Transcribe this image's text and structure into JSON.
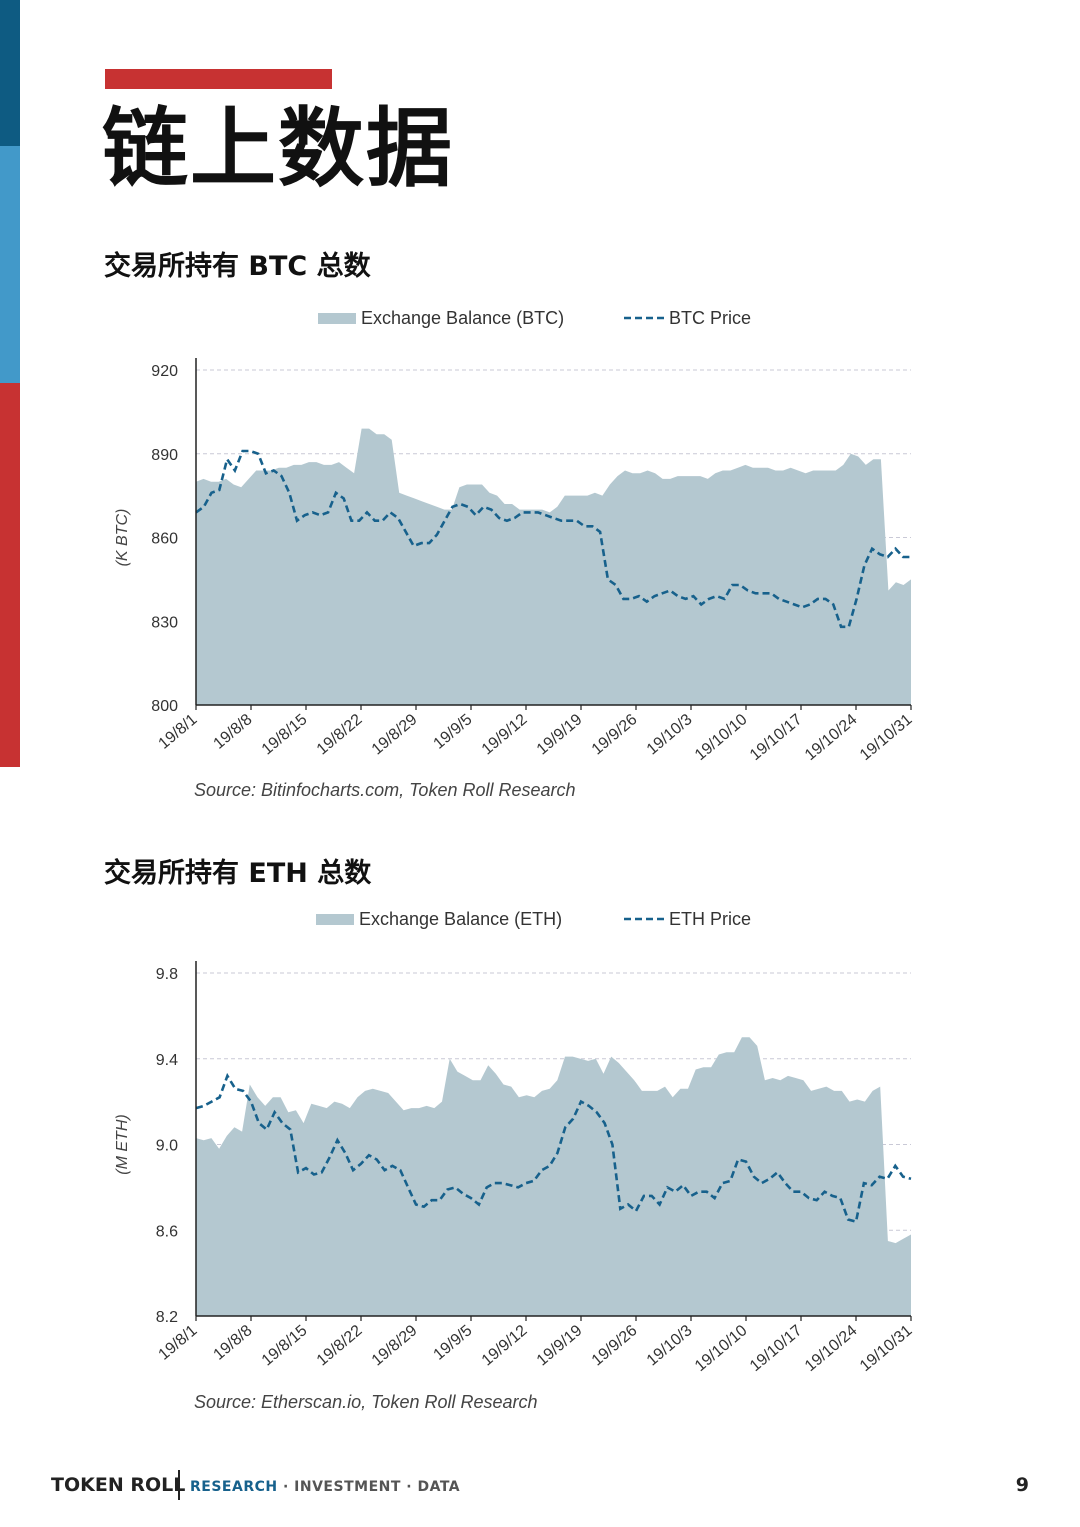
{
  "page": {
    "title": "链上数据",
    "number": "9",
    "footer": {
      "brand": "TOKEN ROLL",
      "research": "RESEARCH",
      "rest": " · INVESTMENT · DATA"
    }
  },
  "colors": {
    "area": "#b4c8d0",
    "line": "#17618c",
    "grid": "#c9c9d6",
    "accent": "#c73232"
  },
  "sections": {
    "btc": {
      "heading": "交易所持有 BTC 总数"
    },
    "eth": {
      "heading": "交易所持有 ETH 总数"
    }
  },
  "chart_data": [
    {
      "type": "area",
      "title": "交易所持有 BTC 总数",
      "ylabel": "(K BTC)",
      "ylim": [
        800,
        920
      ],
      "yticks": [
        "800",
        "830",
        "860",
        "890",
        "920"
      ],
      "x_labels": [
        "19/8/1",
        "19/8/8",
        "19/8/15",
        "19/8/22",
        "19/8/29",
        "19/9/5",
        "19/9/12",
        "19/9/19",
        "19/9/26",
        "19/10/3",
        "19/10/10",
        "19/10/17",
        "19/10/24",
        "19/10/31"
      ],
      "grid": true,
      "legend": "top",
      "source": "Source: Bitinfocharts.com, Token Roll Research",
      "series": [
        {
          "name": "Exchange Balance (BTC)",
          "style": "area",
          "values": [
            880,
            881,
            880,
            880,
            881,
            879,
            878,
            881,
            884,
            884,
            884,
            885,
            885,
            886,
            886,
            887,
            887,
            886,
            886,
            887,
            885,
            883,
            899,
            899,
            897,
            897,
            895,
            876,
            875,
            874,
            873,
            872,
            871,
            870,
            870,
            878,
            879,
            879,
            879,
            876,
            875,
            872,
            872,
            870,
            870,
            870,
            870,
            869,
            871,
            875,
            875,
            875,
            875,
            876,
            875,
            879,
            882,
            884,
            883,
            883,
            884,
            883,
            881,
            881,
            882,
            882,
            882,
            882,
            881,
            883,
            884,
            884,
            885,
            886,
            885,
            885,
            885,
            884,
            884,
            885,
            884,
            883,
            884,
            884,
            884,
            884,
            886,
            890,
            889,
            886,
            888,
            888,
            841,
            844,
            843,
            845
          ]
        },
        {
          "name": "BTC Price",
          "style": "dashed",
          "values": [
            869,
            871,
            876,
            877,
            888,
            884,
            891,
            891,
            890,
            883,
            884,
            882,
            876,
            866,
            868,
            869,
            868,
            869,
            876,
            874,
            866,
            866,
            869,
            866,
            866,
            869,
            867,
            862,
            857,
            858,
            858,
            861,
            866,
            871,
            872,
            871,
            868,
            871,
            870,
            867,
            866,
            867,
            869,
            869,
            869,
            868,
            867,
            866,
            866,
            866,
            864,
            864,
            862,
            845,
            843,
            838,
            838,
            839,
            837,
            839,
            840,
            841,
            839,
            838,
            839,
            836,
            838,
            839,
            838,
            843,
            843,
            841,
            840,
            840,
            840,
            838,
            837,
            836,
            835,
            836,
            838,
            838,
            836,
            828,
            828,
            838,
            850,
            856,
            854,
            853,
            856,
            853,
            853
          ]
        }
      ]
    },
    {
      "type": "area",
      "title": "交易所持有 ETH 总数",
      "ylabel": "(M ETH)",
      "ylim": [
        8.2,
        9.8
      ],
      "yticks": [
        "8.2",
        "8.6",
        "9.0",
        "9.4",
        "9.8"
      ],
      "x_labels": [
        "19/8/1",
        "19/8/8",
        "19/8/15",
        "19/8/22",
        "19/8/29",
        "19/9/5",
        "19/9/12",
        "19/9/19",
        "19/9/26",
        "19/10/3",
        "19/10/10",
        "19/10/17",
        "19/10/24",
        "19/10/31"
      ],
      "grid": true,
      "legend": "top",
      "source": "Source: Etherscan.io, Token Roll Research",
      "series": [
        {
          "name": "Exchange Balance (ETH)",
          "style": "area",
          "values": [
            9.03,
            9.02,
            9.03,
            8.98,
            9.04,
            9.08,
            9.06,
            9.28,
            9.22,
            9.18,
            9.22,
            9.22,
            9.15,
            9.16,
            9.1,
            9.19,
            9.18,
            9.17,
            9.2,
            9.19,
            9.17,
            9.22,
            9.25,
            9.26,
            9.25,
            9.24,
            9.2,
            9.16,
            9.17,
            9.17,
            9.18,
            9.17,
            9.2,
            9.4,
            9.34,
            9.32,
            9.3,
            9.3,
            9.37,
            9.33,
            9.28,
            9.27,
            9.22,
            9.23,
            9.22,
            9.25,
            9.26,
            9.3,
            9.41,
            9.41,
            9.4,
            9.39,
            9.4,
            9.33,
            9.41,
            9.38,
            9.34,
            9.3,
            9.25,
            9.25,
            9.25,
            9.27,
            9.22,
            9.26,
            9.26,
            9.35,
            9.36,
            9.36,
            9.42,
            9.43,
            9.43,
            9.5,
            9.5,
            9.46,
            9.3,
            9.31,
            9.3,
            9.32,
            9.31,
            9.3,
            9.25,
            9.26,
            9.27,
            9.25,
            9.25,
            9.2,
            9.21,
            9.2,
            9.25,
            9.27,
            8.55,
            8.54,
            8.56,
            8.58
          ]
        },
        {
          "name": "ETH Price",
          "style": "dashed",
          "values": [
            9.17,
            9.18,
            9.2,
            9.22,
            9.32,
            9.26,
            9.25,
            9.2,
            9.1,
            9.07,
            9.15,
            9.1,
            9.07,
            8.87,
            8.89,
            8.86,
            8.87,
            8.94,
            9.02,
            8.96,
            8.88,
            8.91,
            8.95,
            8.93,
            8.88,
            8.9,
            8.88,
            8.8,
            8.72,
            8.71,
            8.74,
            8.74,
            8.79,
            8.8,
            8.77,
            8.75,
            8.72,
            8.8,
            8.82,
            8.82,
            8.81,
            8.8,
            8.82,
            8.83,
            8.88,
            8.9,
            8.96,
            9.08,
            9.12,
            9.2,
            9.18,
            9.15,
            9.1,
            9.0,
            8.7,
            8.72,
            8.69,
            8.76,
            8.76,
            8.72,
            8.8,
            8.78,
            8.81,
            8.76,
            8.78,
            8.78,
            8.75,
            8.82,
            8.83,
            8.93,
            8.92,
            8.85,
            8.82,
            8.84,
            8.87,
            8.82,
            8.78,
            8.78,
            8.75,
            8.74,
            8.78,
            8.76,
            8.75,
            8.65,
            8.64,
            8.82,
            8.81,
            8.85,
            8.84,
            8.9,
            8.85,
            8.84
          ]
        }
      ]
    }
  ]
}
